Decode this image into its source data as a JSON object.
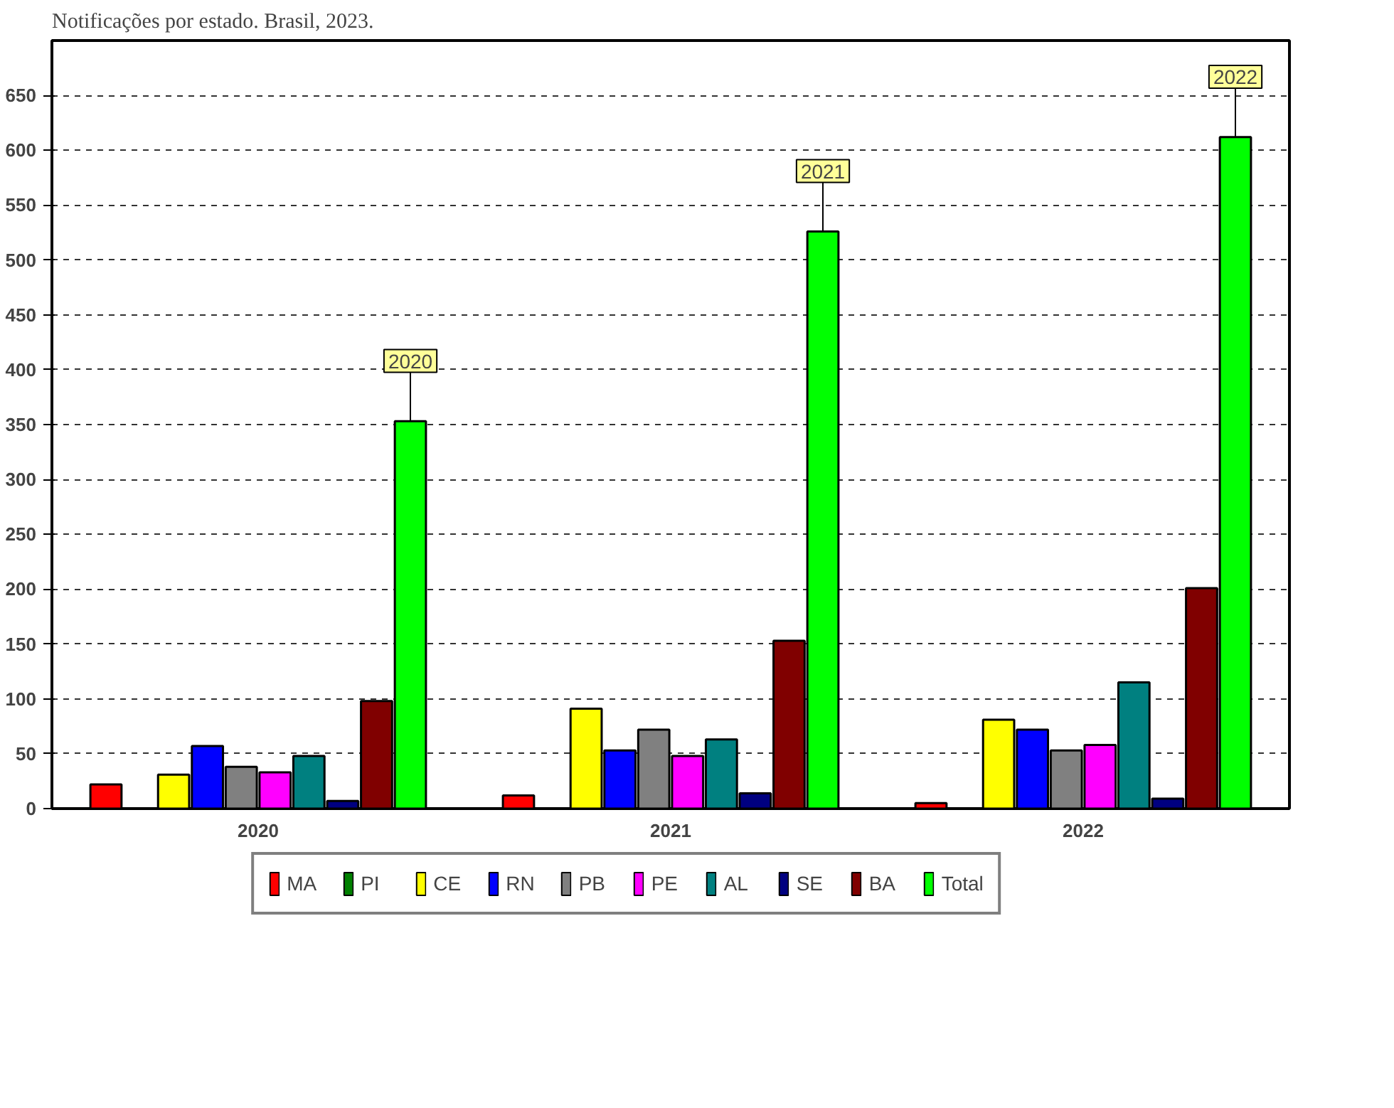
{
  "chart_data": {
    "type": "bar",
    "title": "Notificações por estado. Brasil, 2023.",
    "categories": [
      "2020",
      "2021",
      "2022"
    ],
    "series": [
      {
        "name": "MA",
        "color": "#ff0000",
        "values": [
          22,
          12,
          5
        ]
      },
      {
        "name": "PI",
        "color": "#008000",
        "values": [
          null,
          null,
          null
        ]
      },
      {
        "name": "CE",
        "color": "#ffff00",
        "values": [
          31,
          91,
          81
        ]
      },
      {
        "name": "RN",
        "color": "#0000ff",
        "values": [
          57,
          53,
          72
        ]
      },
      {
        "name": "PB",
        "color": "#808080",
        "values": [
          38,
          72,
          53
        ]
      },
      {
        "name": "PE",
        "color": "#ff00ff",
        "values": [
          33,
          48,
          58
        ]
      },
      {
        "name": "AL",
        "color": "#008080",
        "values": [
          48,
          63,
          115
        ]
      },
      {
        "name": "SE",
        "color": "#000080",
        "values": [
          7,
          14,
          9
        ]
      },
      {
        "name": "BA",
        "color": "#800000",
        "values": [
          98,
          153,
          201
        ]
      },
      {
        "name": "Total",
        "color": "#00ff00",
        "values": [
          353,
          526,
          612
        ]
      }
    ],
    "ylim": [
      0,
      700
    ],
    "yticks": [
      0,
      50,
      100,
      150,
      200,
      250,
      300,
      350,
      400,
      450,
      500,
      550,
      600,
      650
    ],
    "grid": "y",
    "legend": "bottom",
    "annotations": [
      {
        "text": "2020",
        "y": 353
      },
      {
        "text": "2021",
        "y": 526
      },
      {
        "text": "2022",
        "y": 612
      }
    ]
  }
}
